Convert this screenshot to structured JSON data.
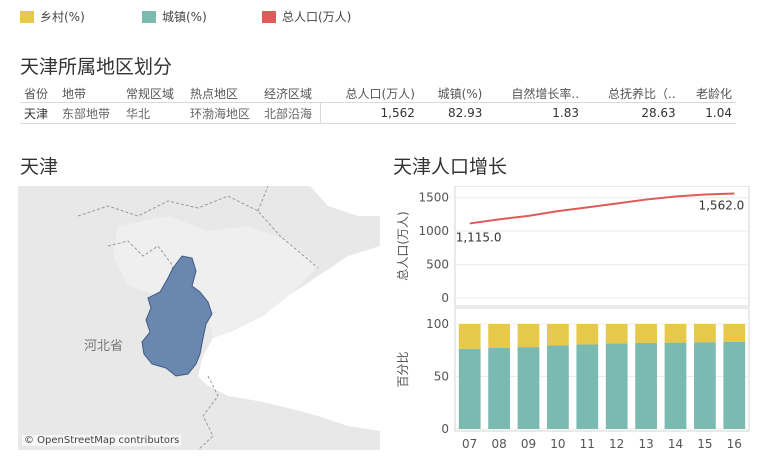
{
  "legend": [
    {
      "label": "乡村(%)",
      "color": "#e6c84a"
    },
    {
      "label": "城镇(%)",
      "color": "#7bbab0"
    },
    {
      "label": "总人口(万人)",
      "color": "#e05a5a"
    }
  ],
  "region_title": "天津所属地区划分",
  "table": {
    "headers": [
      "省份",
      "地带",
      "常规区域",
      "热点地区",
      "经济区域",
      "总人口(万人)",
      "城镇(%)",
      "自然增长率..",
      "总抚养比（..",
      "老龄化"
    ],
    "row": [
      "天津",
      "东部地带",
      "华北",
      "环渤海地区",
      "北部沿海",
      "1,562",
      "82.93",
      "1.83",
      "28.63",
      "1.04"
    ]
  },
  "map": {
    "title": "天津",
    "region_label": "河北省",
    "attribution": "© OpenStreetMap contributors"
  },
  "chart_title": "天津人口增长",
  "chart_data": [
    {
      "type": "line",
      "x": [
        "07",
        "08",
        "09",
        "10",
        "11",
        "12",
        "13",
        "14",
        "15",
        "16"
      ],
      "series": [
        {
          "name": "总人口(万人)",
          "values": [
            1115,
            1176,
            1228,
            1299,
            1355,
            1413,
            1472,
            1517,
            1547,
            1562
          ]
        }
      ],
      "ylabel": "总人口(万人)",
      "ylim": [
        0,
        1600
      ],
      "yticks": [
        0,
        500,
        1000,
        1500
      ],
      "annotations": [
        {
          "x": "07",
          "label": "1,115.0"
        },
        {
          "x": "16",
          "label": "1,562.0"
        }
      ],
      "grid": true
    },
    {
      "type": "bar",
      "stacked": true,
      "categories": [
        "07",
        "08",
        "09",
        "10",
        "11",
        "12",
        "13",
        "14",
        "15",
        "16"
      ],
      "series": [
        {
          "name": "城镇(%)",
          "values": [
            76.3,
            77.2,
            78.0,
            79.6,
            80.5,
            81.6,
            82.0,
            82.3,
            82.6,
            82.9
          ]
        },
        {
          "name": "乡村(%)",
          "values": [
            23.7,
            22.8,
            22.0,
            20.4,
            19.5,
            18.4,
            18.0,
            17.7,
            17.4,
            17.1
          ]
        }
      ],
      "ylabel": "百分比",
      "ylim": [
        0,
        100
      ],
      "yticks": [
        0,
        50,
        100
      ],
      "grid": true
    }
  ]
}
